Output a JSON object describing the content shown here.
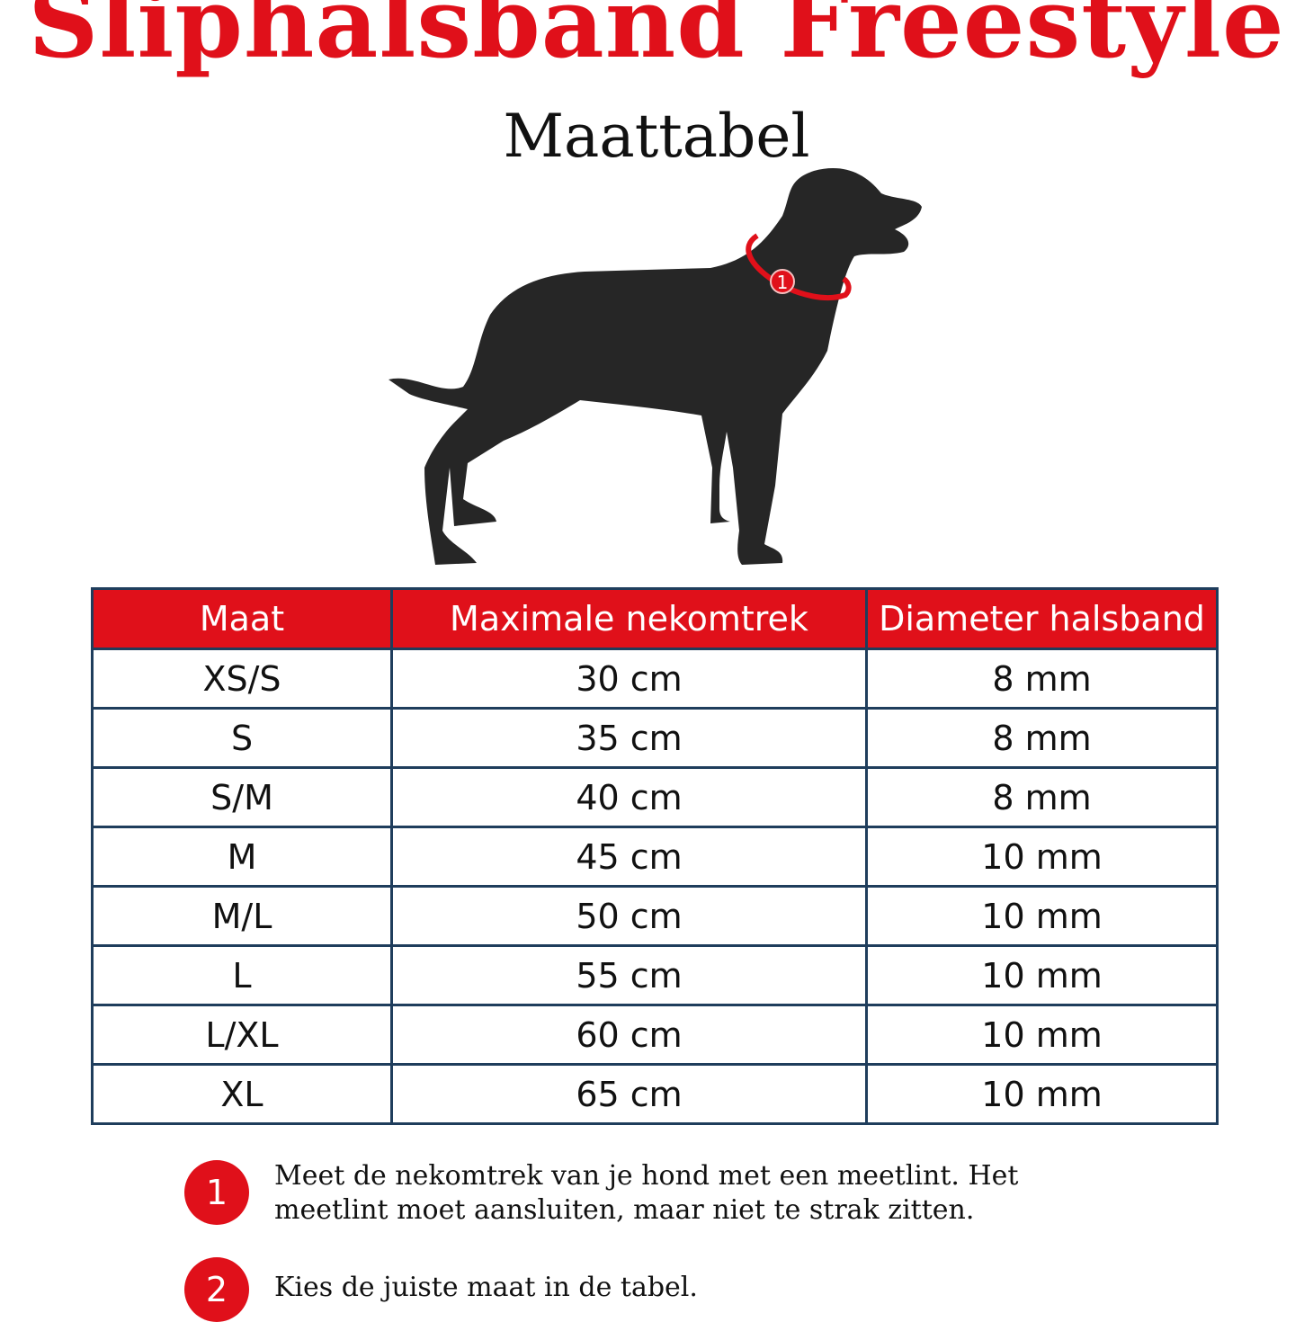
{
  "title": "Sliphalsband Freestyle",
  "subtitle": "Maattabel",
  "colors": {
    "accent": "#e0101a",
    "table_border": "#1f3d5c",
    "dog": "#262626"
  },
  "illustration": {
    "icon": "dog-silhouette-icon",
    "collar_marker": "1"
  },
  "table": {
    "headers": [
      "Maat",
      "Maximale nekomtrek",
      "Diameter halsband"
    ],
    "rows": [
      [
        "XS/S",
        "30 cm",
        "8 mm"
      ],
      [
        "S",
        "35 cm",
        "8 mm"
      ],
      [
        "S/M",
        "40 cm",
        "8 mm"
      ],
      [
        "M",
        "45 cm",
        "10 mm"
      ],
      [
        "M/L",
        "50 cm",
        "10 mm"
      ],
      [
        "L",
        "55 cm",
        "10 mm"
      ],
      [
        "L/XL",
        "60 cm",
        "10 mm"
      ],
      [
        "XL",
        "65 cm",
        "10 mm"
      ]
    ]
  },
  "steps": [
    {
      "number": "1",
      "text": "Meet de nekomtrek van je hond met een meetlint. Het meetlint moet aansluiten, maar niet te strak zitten."
    },
    {
      "number": "2",
      "text": "Kies de juiste maat in de tabel."
    }
  ]
}
